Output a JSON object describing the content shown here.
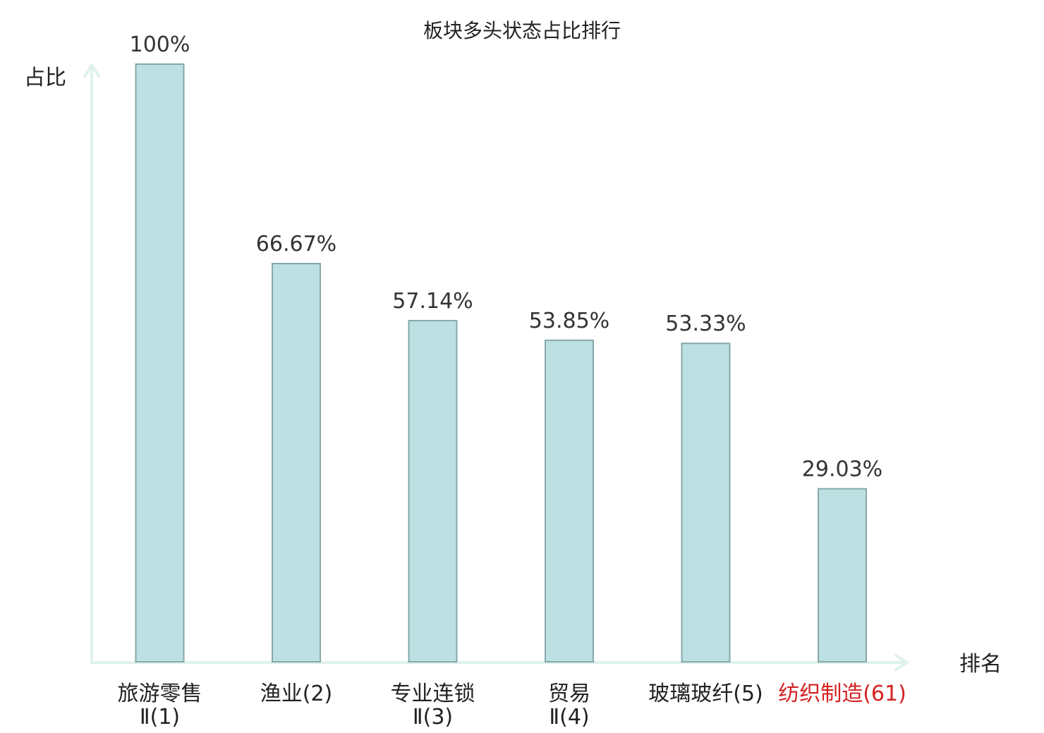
{
  "chart_data": {
    "type": "bar",
    "title": "板块多头状态占比排行",
    "ylabel": "占比",
    "xlabel": "排名",
    "ylim": [
      0,
      100
    ],
    "grid": false,
    "categories": [
      {
        "name": "旅游零售",
        "rank": "Ⅱ(1)",
        "highlight": false
      },
      {
        "name": "渔业",
        "rank": "(2)",
        "highlight": false
      },
      {
        "name": "专业连锁",
        "rank": "Ⅱ(3)",
        "highlight": false
      },
      {
        "name": "贸易",
        "rank": "Ⅱ(4)",
        "highlight": false
      },
      {
        "name": "玻璃玻纤",
        "rank": "(5)",
        "highlight": false
      },
      {
        "name": "纺织制造",
        "rank": "(61)",
        "highlight": true
      }
    ],
    "values": [
      100,
      66.67,
      57.14,
      53.85,
      53.33,
      29.03
    ],
    "value_labels": [
      "100%",
      "66.67%",
      "57.14%",
      "53.85%",
      "53.33%",
      "29.03%"
    ],
    "colors": {
      "bar_fill": "#bde0e2",
      "bar_stroke": "#86a8aa",
      "axis": "#dff2ee",
      "highlight_text": "#d42020"
    }
  }
}
